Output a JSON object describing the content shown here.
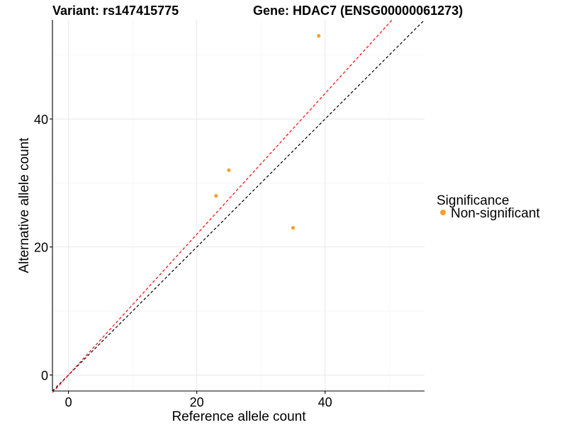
{
  "chart_data": {
    "type": "scatter",
    "title_left": "Variant: rs147415775",
    "title_right": "Gene: HDAC7 (ENSG00000061273)",
    "xlabel": "Reference allele count",
    "ylabel": "Alternative allele count",
    "xlim": [
      -2.5,
      55.5
    ],
    "ylim": [
      -2.5,
      55.5
    ],
    "x_ticks": [
      0,
      20,
      40
    ],
    "y_ticks": [
      0,
      20,
      40
    ],
    "x_minor": [
      10,
      30,
      50
    ],
    "y_minor": [
      10,
      30,
      50
    ],
    "grid": true,
    "legend": {
      "title": "Significance",
      "position": "right",
      "entries": [
        {
          "label": "Non-significant",
          "color": "#f5a02c"
        }
      ]
    },
    "series": [
      {
        "name": "Non-significant",
        "color": "#f5a02c",
        "points": [
          {
            "x": 23,
            "y": 28
          },
          {
            "x": 25,
            "y": 32
          },
          {
            "x": 35,
            "y": 23
          },
          {
            "x": 39,
            "y": 53
          }
        ]
      }
    ],
    "reference_lines": [
      {
        "name": "identity-line",
        "slope": 1.0,
        "intercept": 0,
        "color": "#000000",
        "dash": "dashed"
      },
      {
        "name": "fitted-line",
        "slope": 1.1,
        "intercept": 0,
        "color": "#ff0000",
        "dash": "dashed"
      }
    ]
  }
}
